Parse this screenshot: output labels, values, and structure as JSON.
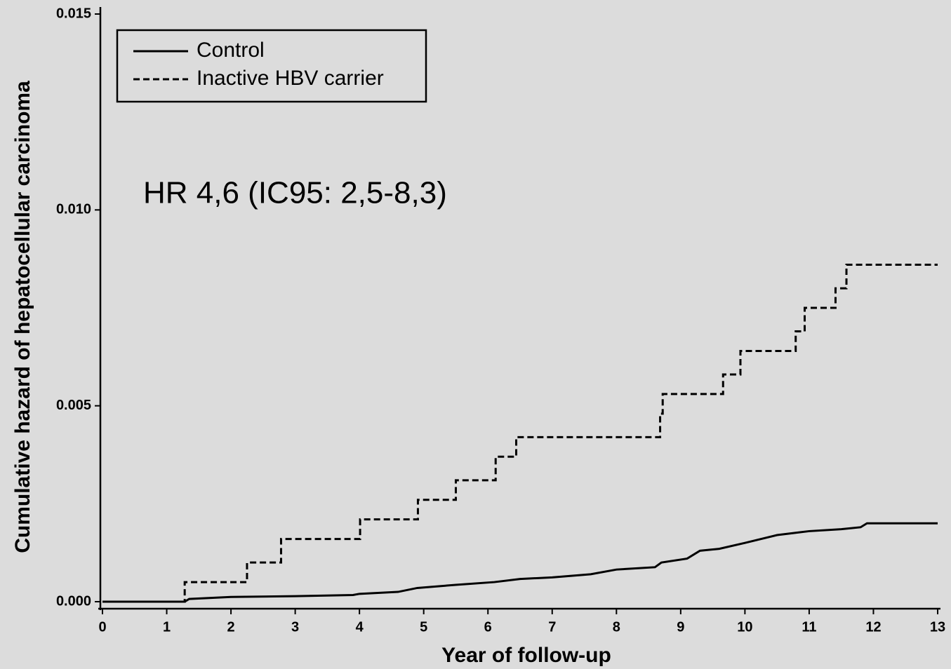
{
  "chart_data": {
    "type": "line",
    "y_label": "Cumulative hazard of hepatocellular carcinoma",
    "x_label": "Year of follow-up",
    "annotation": "HR 4,6 (IC95: 2,5-8,3)",
    "xlim": [
      0,
      13
    ],
    "xticks": [
      0,
      1,
      2,
      3,
      4,
      5,
      6,
      7,
      8,
      9,
      10,
      11,
      12,
      13
    ],
    "ylim": [
      0,
      0.015
    ],
    "yticks": [
      {
        "value": 0,
        "label": "0.000"
      },
      0.005,
      {
        "value": 0.01,
        "label": "0.010"
      },
      0.015
    ],
    "legend": "upper left",
    "series": [
      {
        "name": "Control",
        "color": "#000000",
        "dash": false,
        "drawstyle": "linear",
        "x": [
          0,
          1.28,
          1.35,
          2,
          3,
          3.9,
          4.0,
          4.6,
          4.9,
          5.5,
          6.1,
          6.5,
          7,
          7.6,
          8,
          8.6,
          8.7,
          9.1,
          9.3,
          9.6,
          10,
          10.5,
          11,
          11.5,
          11.8,
          11.9,
          13
        ],
        "values": [
          0,
          0,
          7e-05,
          0.00012,
          0.00014,
          0.00017,
          0.0002,
          0.00025,
          0.00035,
          0.00043,
          0.0005,
          0.00058,
          0.00062,
          0.0007,
          0.00082,
          0.00088,
          0.001,
          0.0011,
          0.0013,
          0.00135,
          0.0015,
          0.0017,
          0.0018,
          0.00185,
          0.0019,
          0.002,
          0.002
        ]
      },
      {
        "name": "Inactive HBV carrier",
        "color": "#000000",
        "dash": true,
        "drawstyle": "steps-post",
        "x": [
          0,
          1.28,
          2.25,
          2.78,
          4.01,
          4.91,
          5.5,
          6.12,
          6.44,
          8.68,
          8.72,
          9.66,
          9.93,
          10.79,
          10.93,
          11.41,
          11.58,
          13
        ],
        "values": [
          0,
          0.0005,
          0.001,
          0.0016,
          0.0021,
          0.0026,
          0.0031,
          0.0037,
          0.0042,
          0.0048,
          0.0053,
          0.0058,
          0.0064,
          0.0069,
          0.0075,
          0.008,
          0.0086,
          0.0086
        ]
      }
    ]
  }
}
